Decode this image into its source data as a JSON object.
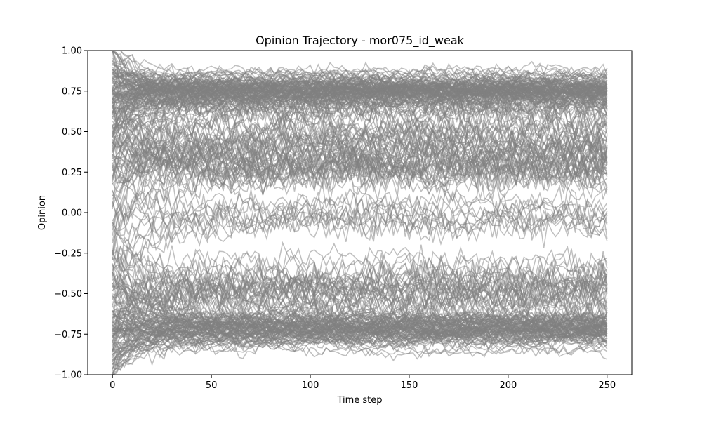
{
  "chart_data": {
    "type": "line",
    "title": "Opinion Trajectory - mor075_id_weak",
    "xlabel": "Time step",
    "ylabel": "Opinion",
    "xlim": [
      -12.5,
      262.5
    ],
    "ylim": [
      -1.0,
      1.0
    ],
    "x_ticks": [
      0,
      50,
      100,
      150,
      200,
      250
    ],
    "y_ticks": [
      -1.0,
      -0.75,
      -0.5,
      -0.25,
      0.0,
      0.25,
      0.5,
      0.75,
      1.0
    ],
    "x_tick_labels": [
      "0",
      "50",
      "100",
      "150",
      "200",
      "250"
    ],
    "y_tick_labels": [
      "−1.00",
      "−0.75",
      "−0.50",
      "−0.25",
      "0.00",
      "0.25",
      "0.50",
      "0.75",
      "1.00"
    ],
    "grid": false,
    "line_color": "#808080",
    "line_opacity": 0.5,
    "time_range": [
      0,
      250
    ],
    "series_count": 300,
    "cluster_centers": [
      0.75,
      -0.72,
      0.3,
      0.0,
      -0.45,
      0.45,
      -0.6,
      0.6
    ],
    "cluster_weights": [
      0.33,
      0.33,
      0.08,
      0.04,
      0.08,
      0.06,
      0.04,
      0.04
    ]
  }
}
